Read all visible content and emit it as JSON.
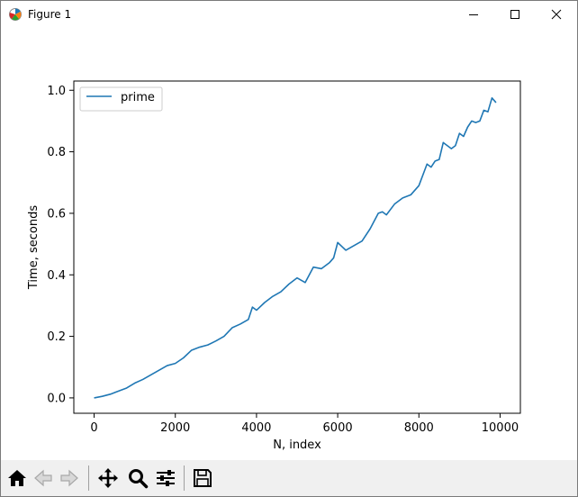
{
  "window": {
    "title": "Figure 1",
    "icons": {
      "app": "matplotlib-icon",
      "minimize": "minimize-icon",
      "maximize": "maximize-icon",
      "close": "close-icon"
    }
  },
  "toolbar": {
    "buttons": [
      {
        "name": "home-button",
        "icon": "home-icon"
      },
      {
        "name": "back-button",
        "icon": "back-arrow-icon"
      },
      {
        "name": "forward-button",
        "icon": "forward-arrow-icon"
      },
      {
        "name": "pan-button",
        "icon": "move-icon"
      },
      {
        "name": "zoom-button",
        "icon": "magnifier-icon"
      },
      {
        "name": "configure-subplots-button",
        "icon": "sliders-icon"
      },
      {
        "name": "save-button",
        "icon": "floppy-disk-icon"
      }
    ]
  },
  "chart_data": {
    "type": "line",
    "title": "",
    "xlabel": "N, index",
    "ylabel": "Time, seconds",
    "xlim": [
      -500,
      10500
    ],
    "ylim": [
      -0.05,
      1.03
    ],
    "xticks": [
      0,
      2000,
      4000,
      6000,
      8000,
      10000
    ],
    "yticks": [
      0.0,
      0.2,
      0.4,
      0.6,
      0.8,
      1.0
    ],
    "xtick_labels": [
      "0",
      "2000",
      "4000",
      "6000",
      "8000",
      "10000"
    ],
    "ytick_labels": [
      "0.0",
      "0.2",
      "0.4",
      "0.6",
      "0.8",
      "1.0"
    ],
    "grid": false,
    "legend": {
      "placement": "upper-left"
    },
    "series": [
      {
        "name": "prime",
        "color": "#1f77b4",
        "x": [
          0,
          200,
          400,
          600,
          800,
          1000,
          1200,
          1400,
          1600,
          1800,
          2000,
          2200,
          2400,
          2600,
          2800,
          3000,
          3200,
          3400,
          3600,
          3800,
          3900,
          4000,
          4200,
          4400,
          4600,
          4800,
          5000,
          5200,
          5400,
          5600,
          5800,
          5900,
          6000,
          6200,
          6400,
          6600,
          6800,
          7000,
          7100,
          7200,
          7400,
          7600,
          7800,
          8000,
          8200,
          8300,
          8400,
          8500,
          8600,
          8800,
          8900,
          9000,
          9100,
          9200,
          9300,
          9400,
          9500,
          9600,
          9700,
          9800,
          9900
        ],
        "y": [
          0.0,
          0.005,
          0.012,
          0.022,
          0.032,
          0.048,
          0.06,
          0.075,
          0.09,
          0.105,
          0.112,
          0.13,
          0.155,
          0.165,
          0.172,
          0.185,
          0.2,
          0.228,
          0.24,
          0.255,
          0.295,
          0.285,
          0.31,
          0.33,
          0.345,
          0.37,
          0.39,
          0.375,
          0.425,
          0.42,
          0.44,
          0.455,
          0.505,
          0.48,
          0.495,
          0.51,
          0.55,
          0.6,
          0.605,
          0.595,
          0.63,
          0.65,
          0.66,
          0.69,
          0.76,
          0.75,
          0.77,
          0.775,
          0.83,
          0.81,
          0.82,
          0.86,
          0.85,
          0.88,
          0.9,
          0.895,
          0.9,
          0.935,
          0.93,
          0.975,
          0.96
        ]
      }
    ]
  }
}
